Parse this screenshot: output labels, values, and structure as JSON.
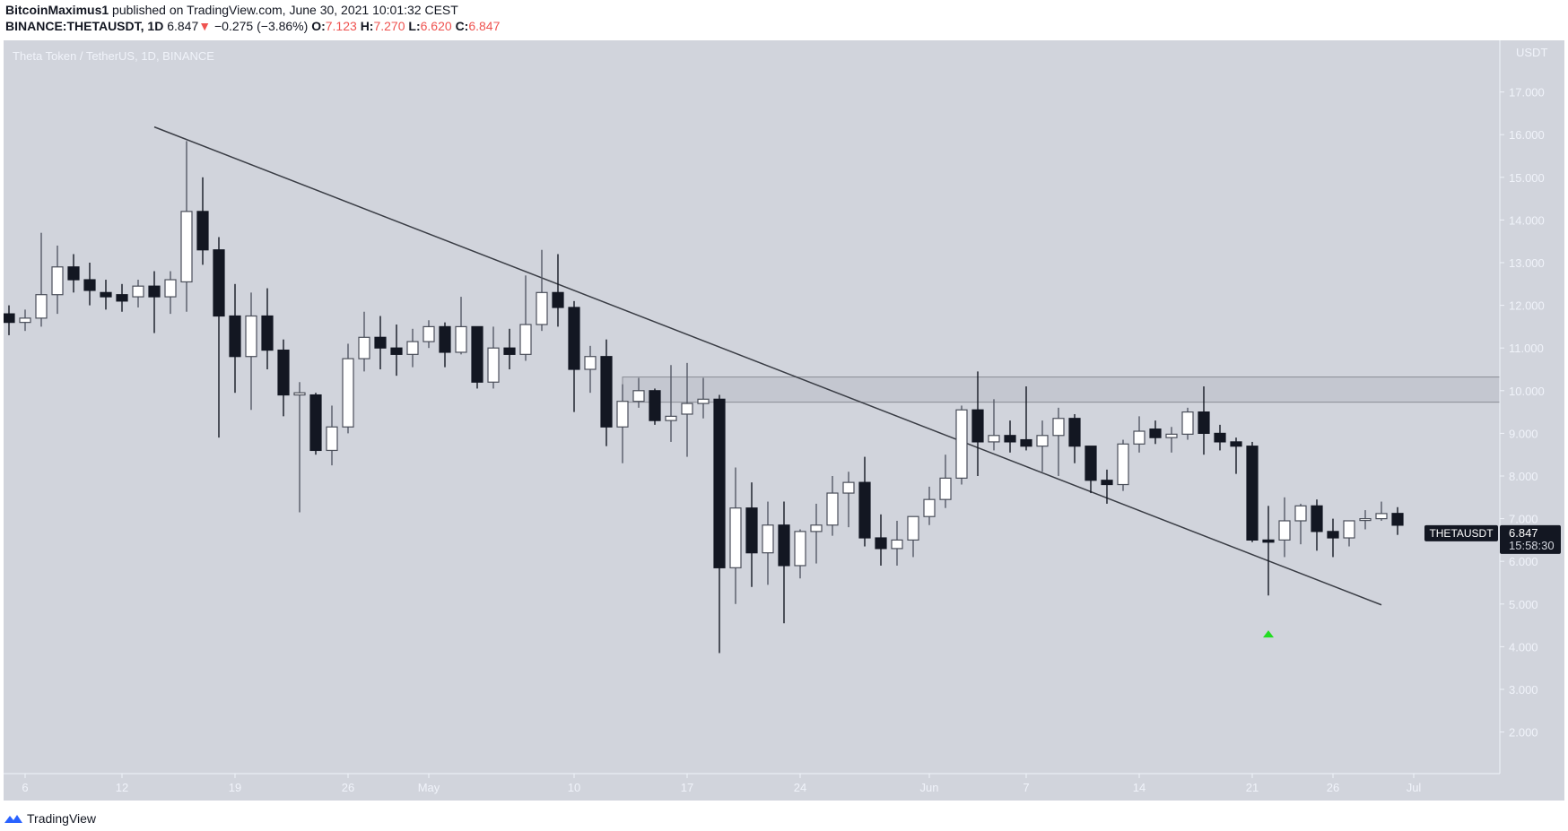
{
  "header": {
    "author": "BitcoinMaximus1",
    "published_text": "published on TradingView.com, June 30, 2021 10:01:32 CEST",
    "symbol": "BINANCE:THETAUSDT, 1D",
    "last": "6.847",
    "change": "−0.275 (−3.86%)",
    "o_label": "O:",
    "o": "7.123",
    "h_label": "H:",
    "h": "7.270",
    "l_label": "L:",
    "l": "6.620",
    "c_label": "C:",
    "c": "6.847"
  },
  "legend": "Theta Token / TetherUS, 1D, BINANCE",
  "footer": {
    "brand": "TradingView"
  },
  "colors": {
    "background": "#d1d4dc",
    "up": "#ffffff",
    "down": "#131722",
    "change_red": "#ef5350",
    "signal_green": "#22dd22"
  },
  "chart_data": {
    "type": "candlestick",
    "title": "Theta Token / TetherUS, 1D, BINANCE",
    "currency_label": "USDT",
    "ylim": [
      1.0,
      18.2
    ],
    "y_ticks": [
      "2.000",
      "3.000",
      "4.000",
      "5.000",
      "6.000",
      "7.000",
      "8.000",
      "9.000",
      "10.000",
      "11.000",
      "12.000",
      "13.000",
      "14.000",
      "15.000",
      "16.000",
      "17.000"
    ],
    "x_ticks": [
      {
        "label": "6",
        "date": "Apr 6"
      },
      {
        "label": "12",
        "date": "Apr 12"
      },
      {
        "label": "19",
        "date": "Apr 19"
      },
      {
        "label": "26",
        "date": "Apr 26"
      },
      {
        "label": "May",
        "date": "May 1"
      },
      {
        "label": "10",
        "date": "May 10"
      },
      {
        "label": "17",
        "date": "May 17"
      },
      {
        "label": "24",
        "date": "May 24"
      },
      {
        "label": "Jun",
        "date": "Jun 1"
      },
      {
        "label": "7",
        "date": "Jun 7"
      },
      {
        "label": "14",
        "date": "Jun 14"
      },
      {
        "label": "21",
        "date": "Jun 21"
      },
      {
        "label": "26",
        "date": "Jun 26"
      },
      {
        "label": "Jul",
        "date": "Jul 1"
      }
    ],
    "candles_fields": [
      "date",
      "open",
      "high",
      "low",
      "close"
    ],
    "candles": [
      [
        "Apr 5",
        11.8,
        12.0,
        11.3,
        11.6
      ],
      [
        "Apr 6",
        11.6,
        11.9,
        11.4,
        11.7
      ],
      [
        "Apr 7",
        11.7,
        13.7,
        11.5,
        12.25
      ],
      [
        "Apr 8",
        12.25,
        13.4,
        11.8,
        12.9
      ],
      [
        "Apr 9",
        12.9,
        13.2,
        12.3,
        12.6
      ],
      [
        "Apr 10",
        12.6,
        13.0,
        12.0,
        12.35
      ],
      [
        "Apr 11",
        12.3,
        12.6,
        11.9,
        12.2
      ],
      [
        "Apr 12",
        12.25,
        12.5,
        11.85,
        12.1
      ],
      [
        "Apr 13",
        12.2,
        12.6,
        11.95,
        12.45
      ],
      [
        "Apr 14",
        12.45,
        12.8,
        11.35,
        12.2
      ],
      [
        "Apr 15",
        12.2,
        12.8,
        11.8,
        12.6
      ],
      [
        "Apr 16",
        12.55,
        15.85,
        11.85,
        14.2
      ],
      [
        "Apr 17",
        14.2,
        15.0,
        12.95,
        13.3
      ],
      [
        "Apr 18",
        13.3,
        13.6,
        8.9,
        11.75
      ],
      [
        "Apr 19",
        11.75,
        12.5,
        9.95,
        10.8
      ],
      [
        "Apr 20",
        10.8,
        12.3,
        9.55,
        11.75
      ],
      [
        "Apr 21",
        11.75,
        12.4,
        10.5,
        10.95
      ],
      [
        "Apr 22",
        10.95,
        11.2,
        9.4,
        9.9
      ],
      [
        "Apr 23",
        9.9,
        10.2,
        7.15,
        9.95
      ],
      [
        "Apr 24",
        9.9,
        9.95,
        8.5,
        8.6
      ],
      [
        "Apr 25",
        8.6,
        9.65,
        8.25,
        9.15
      ],
      [
        "Apr 26",
        9.15,
        11.1,
        9.0,
        10.75
      ],
      [
        "Apr 27",
        10.75,
        11.85,
        10.45,
        11.25
      ],
      [
        "Apr 28",
        11.25,
        11.75,
        10.5,
        11.0
      ],
      [
        "Apr 29",
        11.0,
        11.55,
        10.35,
        10.85
      ],
      [
        "Apr 30",
        10.85,
        11.45,
        10.55,
        11.15
      ],
      [
        "May 1",
        11.15,
        11.65,
        11.0,
        11.5
      ],
      [
        "May 2",
        11.5,
        11.6,
        10.55,
        10.9
      ],
      [
        "May 3",
        10.9,
        12.2,
        10.85,
        11.5
      ],
      [
        "May 4",
        11.5,
        11.5,
        10.05,
        10.2
      ],
      [
        "May 5",
        10.2,
        11.5,
        10.05,
        11.0
      ],
      [
        "May 6",
        11.0,
        11.45,
        10.5,
        10.85
      ],
      [
        "May 7",
        10.85,
        12.7,
        10.7,
        11.55
      ],
      [
        "May 8",
        11.55,
        13.3,
        11.4,
        12.3
      ],
      [
        "May 9",
        12.3,
        13.2,
        11.5,
        11.95
      ],
      [
        "May 10",
        11.95,
        12.1,
        9.5,
        10.5
      ],
      [
        "May 11",
        10.5,
        11.05,
        9.95,
        10.8
      ],
      [
        "May 12",
        10.8,
        11.2,
        8.7,
        9.15
      ],
      [
        "May 13",
        9.15,
        10.15,
        8.3,
        9.75
      ],
      [
        "May 14",
        9.75,
        10.3,
        9.6,
        10.0
      ],
      [
        "May 15",
        10.0,
        10.05,
        9.2,
        9.3
      ],
      [
        "May 16",
        9.3,
        10.6,
        8.8,
        9.4
      ],
      [
        "May 17",
        9.45,
        10.65,
        8.45,
        9.7
      ],
      [
        "May 18",
        9.7,
        10.3,
        9.35,
        9.8
      ],
      [
        "May 19",
        9.8,
        9.9,
        3.85,
        5.85
      ],
      [
        "May 20",
        5.85,
        8.2,
        5.0,
        7.25
      ],
      [
        "May 21",
        7.25,
        7.85,
        5.4,
        6.2
      ],
      [
        "May 22",
        6.2,
        7.4,
        5.45,
        6.85
      ],
      [
        "May 23",
        6.85,
        7.4,
        4.55,
        5.9
      ],
      [
        "May 24",
        5.9,
        6.75,
        5.6,
        6.7
      ],
      [
        "May 25",
        6.7,
        7.35,
        5.95,
        6.85
      ],
      [
        "May 26",
        6.85,
        8.0,
        6.6,
        7.6
      ],
      [
        "May 27",
        7.6,
        8.1,
        6.8,
        7.85
      ],
      [
        "May 28",
        7.85,
        8.45,
        6.35,
        6.55
      ],
      [
        "May 29",
        6.55,
        7.1,
        5.9,
        6.3
      ],
      [
        "May 30",
        6.3,
        6.95,
        5.9,
        6.5
      ],
      [
        "May 31",
        6.5,
        7.05,
        6.1,
        7.05
      ],
      [
        "Jun 1",
        7.05,
        7.75,
        6.85,
        7.45
      ],
      [
        "Jun 2",
        7.45,
        8.5,
        7.25,
        7.95
      ],
      [
        "Jun 3",
        7.95,
        9.65,
        7.8,
        9.55
      ],
      [
        "Jun 4",
        9.55,
        10.45,
        8.0,
        8.8
      ],
      [
        "Jun 5",
        8.8,
        9.8,
        8.6,
        8.95
      ],
      [
        "Jun 6",
        8.95,
        9.3,
        8.55,
        8.8
      ],
      [
        "Jun 7",
        8.85,
        10.1,
        8.6,
        8.7
      ],
      [
        "Jun 8",
        8.7,
        9.3,
        8.1,
        8.95
      ],
      [
        "Jun 9",
        8.95,
        9.6,
        8.0,
        9.35
      ],
      [
        "Jun 10",
        9.35,
        9.45,
        8.3,
        8.7
      ],
      [
        "Jun 11",
        8.7,
        8.7,
        7.6,
        7.9
      ],
      [
        "Jun 12",
        7.9,
        8.15,
        7.35,
        7.8
      ],
      [
        "Jun 13",
        7.8,
        8.85,
        7.65,
        8.75
      ],
      [
        "Jun 14",
        8.75,
        9.4,
        8.55,
        9.05
      ],
      [
        "Jun 15",
        9.1,
        9.3,
        8.75,
        8.9
      ],
      [
        "Jun 16",
        8.9,
        9.15,
        8.55,
        8.98
      ],
      [
        "Jun 17",
        8.98,
        9.6,
        8.85,
        9.5
      ],
      [
        "Jun 18",
        9.5,
        10.1,
        8.5,
        9.0
      ],
      [
        "Jun 19",
        9.0,
        9.2,
        8.6,
        8.8
      ],
      [
        "Jun 20",
        8.8,
        8.9,
        8.05,
        8.7
      ],
      [
        "Jun 21",
        8.7,
        8.8,
        6.45,
        6.5
      ],
      [
        "Jun 22",
        6.5,
        7.3,
        5.2,
        6.45
      ],
      [
        "Jun 23",
        6.5,
        7.5,
        6.1,
        6.95
      ],
      [
        "Jun 24",
        6.95,
        7.35,
        6.4,
        7.3
      ],
      [
        "Jun 25",
        7.3,
        7.45,
        6.25,
        6.7
      ],
      [
        "Jun 26",
        6.7,
        7.0,
        6.1,
        6.55
      ],
      [
        "Jun 27",
        6.55,
        6.95,
        6.35,
        6.95
      ],
      [
        "Jun 28",
        6.97,
        7.2,
        6.75,
        7.0
      ],
      [
        "Jun 29",
        7.0,
        7.4,
        6.95,
        7.12
      ],
      [
        "Jun 30",
        7.123,
        7.27,
        6.62,
        6.847
      ]
    ],
    "trendline": {
      "start": {
        "date": "Apr 14",
        "price": 16.18
      },
      "end": {
        "date": "Jun 29",
        "price": 4.98
      }
    },
    "resistance_zone": {
      "from_date": "May 13",
      "top": 10.32,
      "bottom": 9.73
    },
    "signal_marker": {
      "date": "Jun 22",
      "price": 4.3,
      "type": "up-arrow"
    },
    "price_label": {
      "symbol": "THETAUSDT",
      "value": "6.847",
      "countdown": "15:58:30"
    }
  }
}
